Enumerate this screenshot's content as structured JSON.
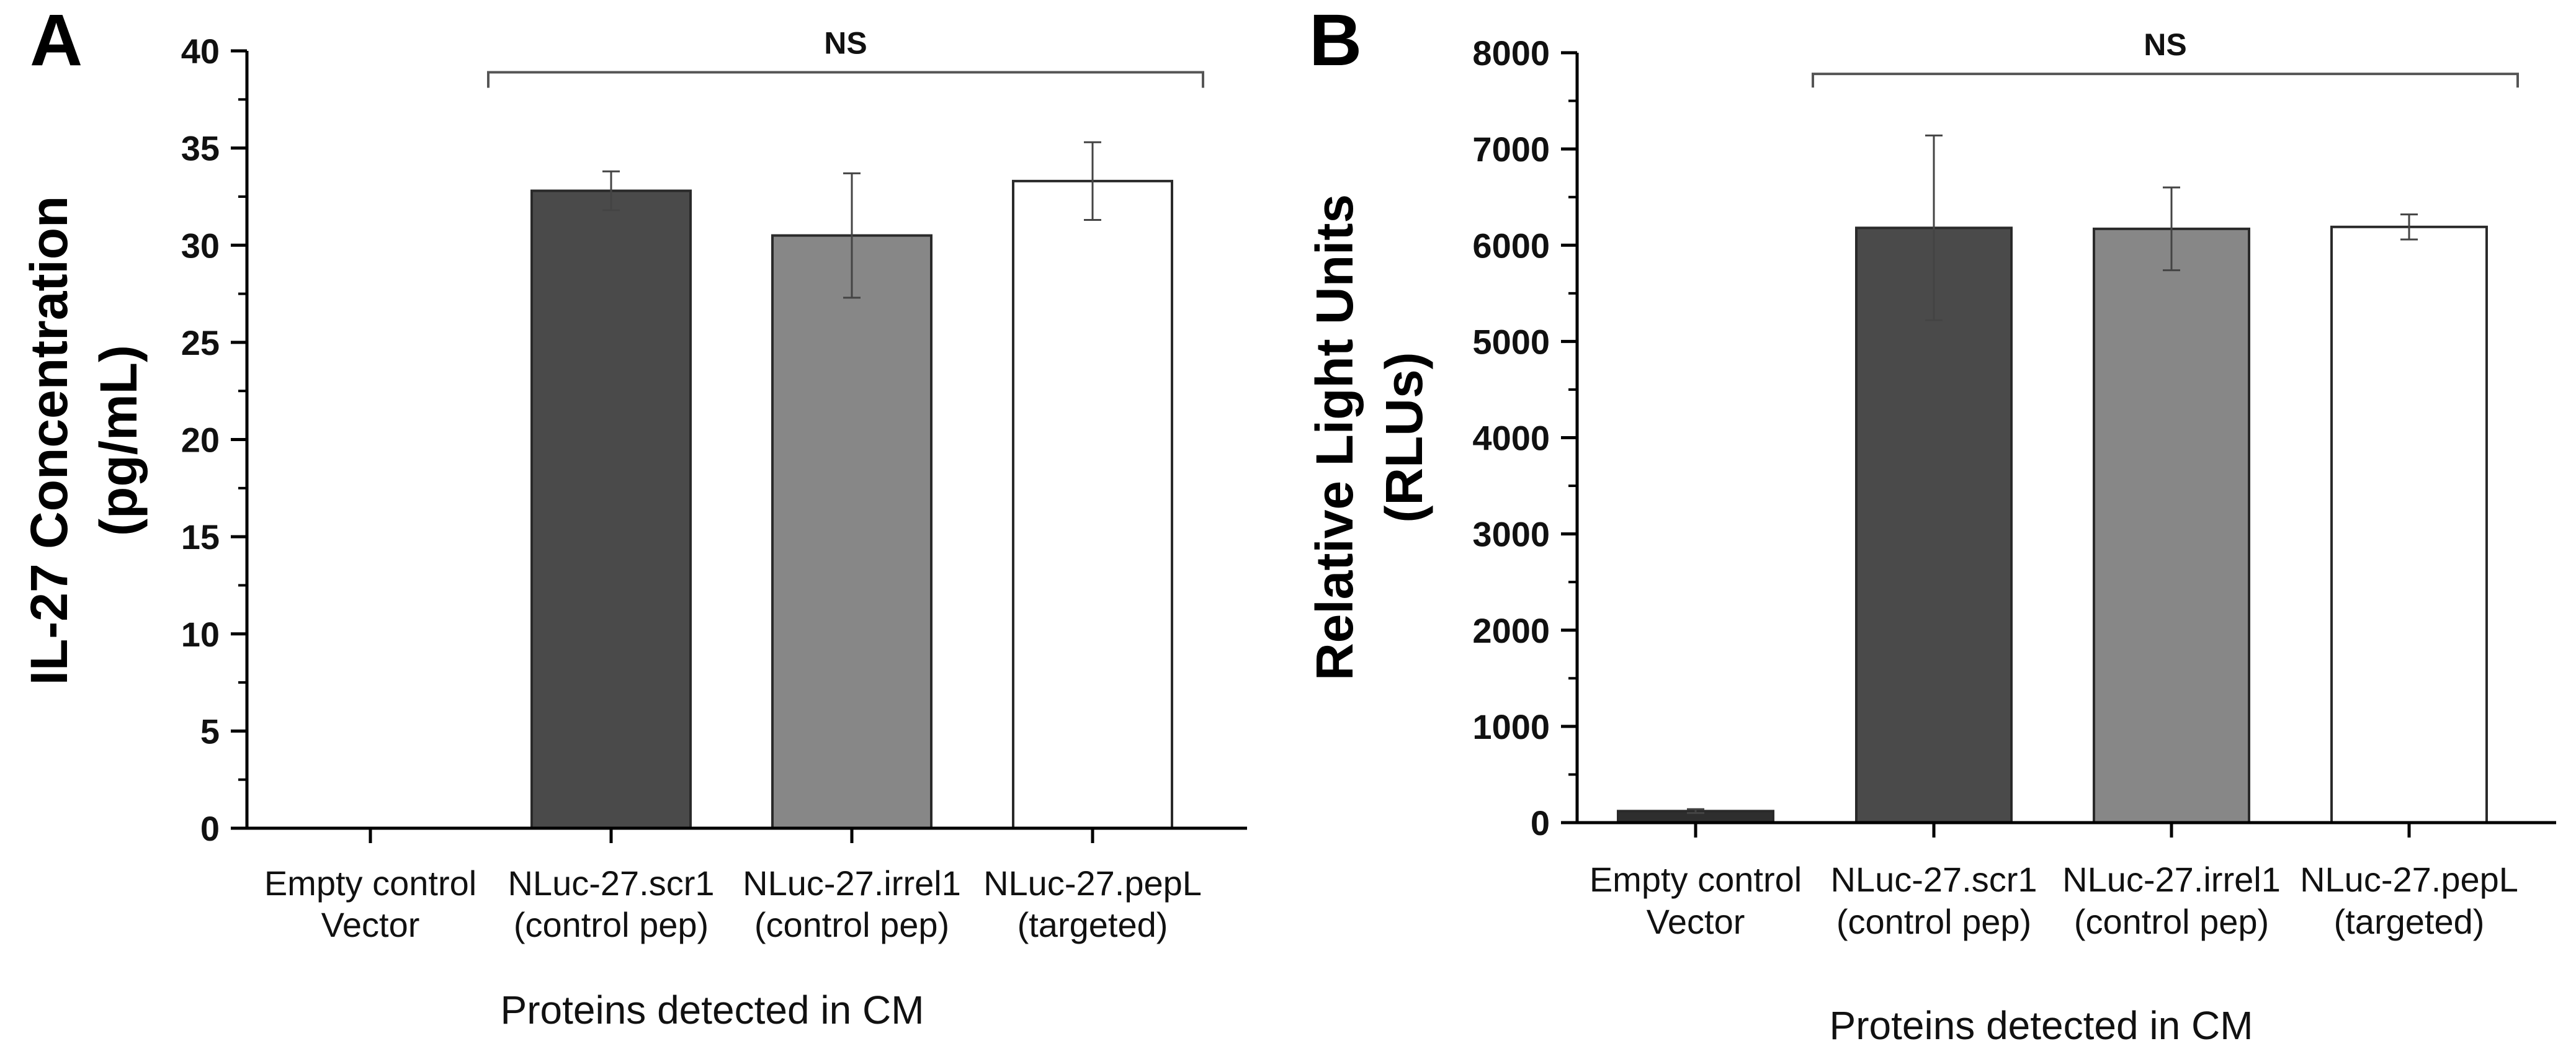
{
  "chart_data": [
    {
      "panel_label": "A",
      "type": "bar",
      "xlabel": "Proteins detected in CM",
      "ylabel_lines": [
        "IL-27 Concentration",
        "(pg/mL)"
      ],
      "ylim": [
        0,
        40
      ],
      "ytick_values": [
        0,
        5,
        10,
        15,
        20,
        25,
        30,
        35,
        40
      ],
      "ytick_labels": [
        "0",
        "5",
        "10",
        "15",
        "20",
        "25",
        "30",
        "35",
        "40"
      ],
      "categories": [
        [
          "Empty control",
          "Vector"
        ],
        [
          "NLuc-27.scr1",
          "(control pep)"
        ],
        [
          "NLuc-27.irrel1",
          "(control pep)"
        ],
        [
          "NLuc-27.pepL",
          "(targeted)"
        ]
      ],
      "values": [
        0,
        32.8,
        30.5,
        33.3
      ],
      "errors": [
        0,
        1.0,
        3.2,
        2.0
      ],
      "bar_colors": [
        "#4a4a4a",
        "#4a4a4a",
        "#878787",
        "#ffffff"
      ],
      "significance": {
        "label": "NS",
        "from_category": 1,
        "to_category": 3,
        "y": 38.9
      }
    },
    {
      "panel_label": "B",
      "type": "bar",
      "xlabel": "Proteins detected in CM",
      "ylabel_lines": [
        "Relative Light Units",
        "(RLUs)"
      ],
      "ylim": [
        0,
        8000
      ],
      "ytick_values": [
        0,
        1000,
        2000,
        3000,
        4000,
        5000,
        6000,
        7000,
        8000
      ],
      "ytick_labels": [
        "0",
        "1000",
        "2000",
        "3000",
        "4000",
        "5000",
        "6000",
        "7000",
        "8000"
      ],
      "categories": [
        [
          "Empty control",
          "Vector"
        ],
        [
          "NLuc-27.scr1",
          "(control pep)"
        ],
        [
          "NLuc-27.irrel1",
          "(control pep)"
        ],
        [
          "NLuc-27.pepL",
          "(targeted)"
        ]
      ],
      "values": [
        120,
        6180,
        6170,
        6190
      ],
      "errors": [
        20,
        960,
        430,
        130
      ],
      "bar_colors": [
        "#2e2e2e",
        "#4a4a4a",
        "#878787",
        "#ffffff"
      ],
      "significance": {
        "label": "NS",
        "from_category": 1,
        "to_category": 3,
        "y": 7780
      }
    }
  ]
}
